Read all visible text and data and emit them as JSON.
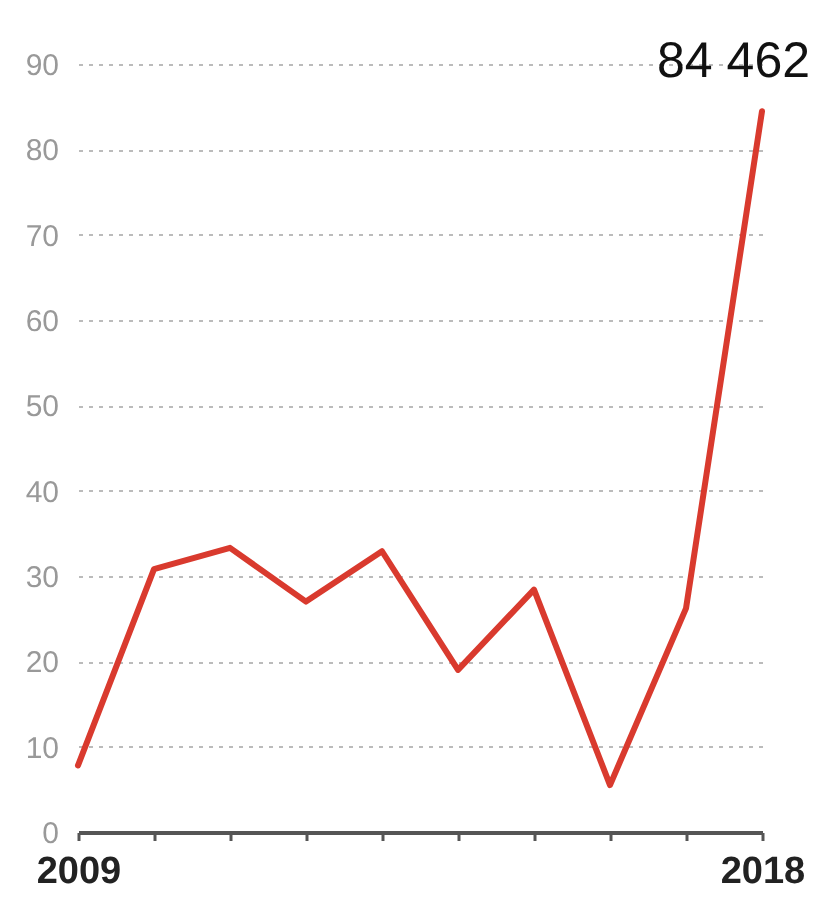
{
  "chart_data": {
    "type": "line",
    "x": [
      2009,
      2010,
      2011,
      2012,
      2013,
      2014,
      2015,
      2016,
      2017,
      2018
    ],
    "series": [
      {
        "color": "#d93a2e",
        "values": [
          7.8,
          30.8,
          33.3,
          27,
          32.9,
          19,
          28.4,
          5.5,
          26.2,
          84.462
        ]
      }
    ],
    "xlim": [
      2009,
      2018
    ],
    "xticks": [
      2009,
      {
        "value": 2010,
        "label": null
      },
      {
        "value": 2011,
        "label": null
      },
      {
        "value": 2012,
        "label": null
      },
      {
        "value": 2013,
        "label": null
      },
      {
        "value": 2014,
        "label": null
      },
      {
        "value": 2015,
        "label": null
      },
      {
        "value": 2016,
        "label": null
      },
      {
        "value": 2017,
        "label": null
      },
      2018
    ],
    "ylim": [
      0,
      90
    ],
    "yticks": [
      0,
      10,
      20,
      30,
      40,
      50,
      60,
      70,
      80,
      90
    ],
    "grid": "y",
    "line_style": "solid",
    "annotations": [
      {
        "text": "84 462",
        "x": 2018,
        "y": 84.462
      }
    ]
  }
}
